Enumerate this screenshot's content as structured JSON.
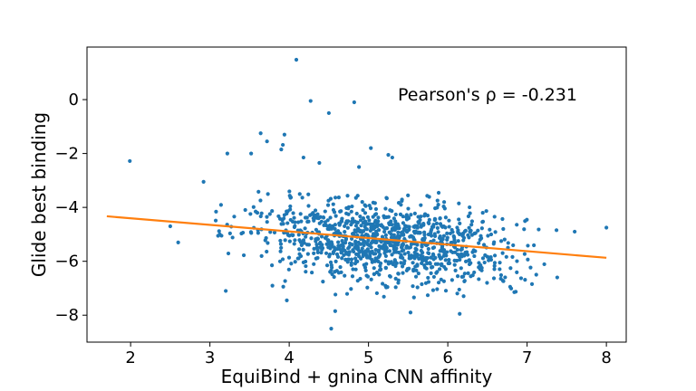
{
  "chart_data": {
    "type": "scatter",
    "xlabel": "EquiBind + gnina CNN affinity",
    "ylabel": "Glide best binding",
    "annotation": "Pearson's ρ = -0.231",
    "xlim": [
      1.45,
      8.25
    ],
    "ylim": [
      -9.0,
      1.95
    ],
    "xticks": [
      2,
      3,
      4,
      5,
      6,
      7,
      8
    ],
    "yticks": [
      0,
      -2,
      -4,
      -6,
      -8
    ],
    "xtick_labels": [
      "2",
      "3",
      "4",
      "5",
      "6",
      "7",
      "8"
    ],
    "ytick_labels": [
      "0",
      "−2",
      "−4",
      "−6",
      "−8"
    ],
    "grid": false,
    "scatter_color": "#1f77b4",
    "fit_color": "#ff7f0e",
    "fit_line": {
      "x": [
        1.7,
        8.0
      ],
      "y": [
        -4.33,
        -5.87
      ]
    },
    "outliers": [
      [
        1.99,
        -2.28
      ],
      [
        4.09,
        1.48
      ],
      [
        4.27,
        -0.05
      ],
      [
        4.5,
        -0.5
      ],
      [
        4.82,
        -0.1
      ],
      [
        3.64,
        -1.25
      ],
      [
        3.94,
        -1.3
      ],
      [
        3.92,
        -1.68
      ],
      [
        3.22,
        -2.0
      ],
      [
        3.52,
        -2.0
      ],
      [
        3.72,
        -1.55
      ],
      [
        3.9,
        -1.85
      ],
      [
        4.18,
        -2.15
      ],
      [
        4.38,
        -2.35
      ],
      [
        5.03,
        -1.8
      ],
      [
        5.25,
        -2.05
      ],
      [
        4.88,
        -2.5
      ],
      [
        5.3,
        -2.15
      ],
      [
        2.92,
        -3.05
      ],
      [
        8.0,
        -4.75
      ],
      [
        7.38,
        -6.6
      ],
      [
        2.6,
        -5.3
      ],
      [
        4.53,
        -8.5
      ],
      [
        4.58,
        -7.85
      ],
      [
        5.53,
        -7.9
      ],
      [
        6.15,
        -7.95
      ],
      [
        3.2,
        -7.1
      ],
      [
        2.5,
        -4.7
      ],
      [
        7.6,
        -4.9
      ],
      [
        3.97,
        -7.45
      ]
    ],
    "cluster": {
      "center_x": 5.18,
      "center_y": -5.1,
      "count": 1080,
      "seed": 20231
    }
  }
}
